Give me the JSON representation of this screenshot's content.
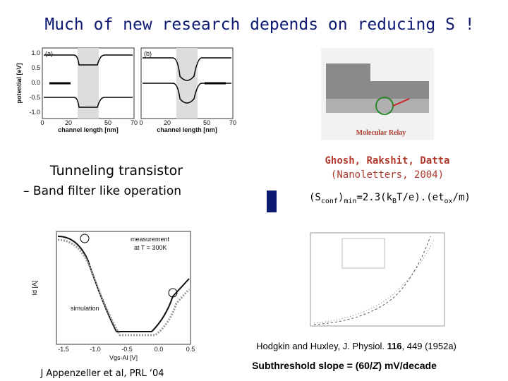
{
  "slide": {
    "title": "Much of new research depends on reducing S !",
    "left": {
      "heading": "Tunneling transistor",
      "bullet": "– Band filter like operation",
      "top_figure": {
        "panels": [
          "(a)",
          "(b)"
        ],
        "y_label": "potential [eV]",
        "x_label": "channel length [nm]",
        "yticks": [
          "1.0",
          "0.5",
          "0.0",
          "-0.5",
          "-1.0"
        ],
        "xticks": [
          "0",
          "20",
          "50",
          "70"
        ]
      },
      "bottom_figure": {
        "y_label": "Id [A]",
        "x_label": "Vgs-Al [V]",
        "xticks": [
          "-1.5",
          "-1.0",
          "-0.5",
          "0.0",
          "0.5"
        ],
        "legend": [
          "measurement",
          "at T = 300K",
          "simulation"
        ]
      },
      "citation": "J Appenzeller et al, PRL ‘04"
    },
    "right": {
      "image_caption": "Molecular Relay",
      "authors": "Ghosh, Rakshit, Datta",
      "journal": "(Nanoletters, 2004)",
      "formula": [
        "(S",
        "conf",
        ")",
        "min",
        "=2.3(k",
        "B",
        "T/e).(et",
        "ox",
        "/m)"
      ],
      "hodgkin": [
        "Hodgkin and Huxley, J. Physiol. ",
        "116",
        ", 449 (1952a)"
      ],
      "subthreshold": [
        "Subthreshold slope = (60/",
        "Z",
        ") mV/decade"
      ]
    }
  }
}
